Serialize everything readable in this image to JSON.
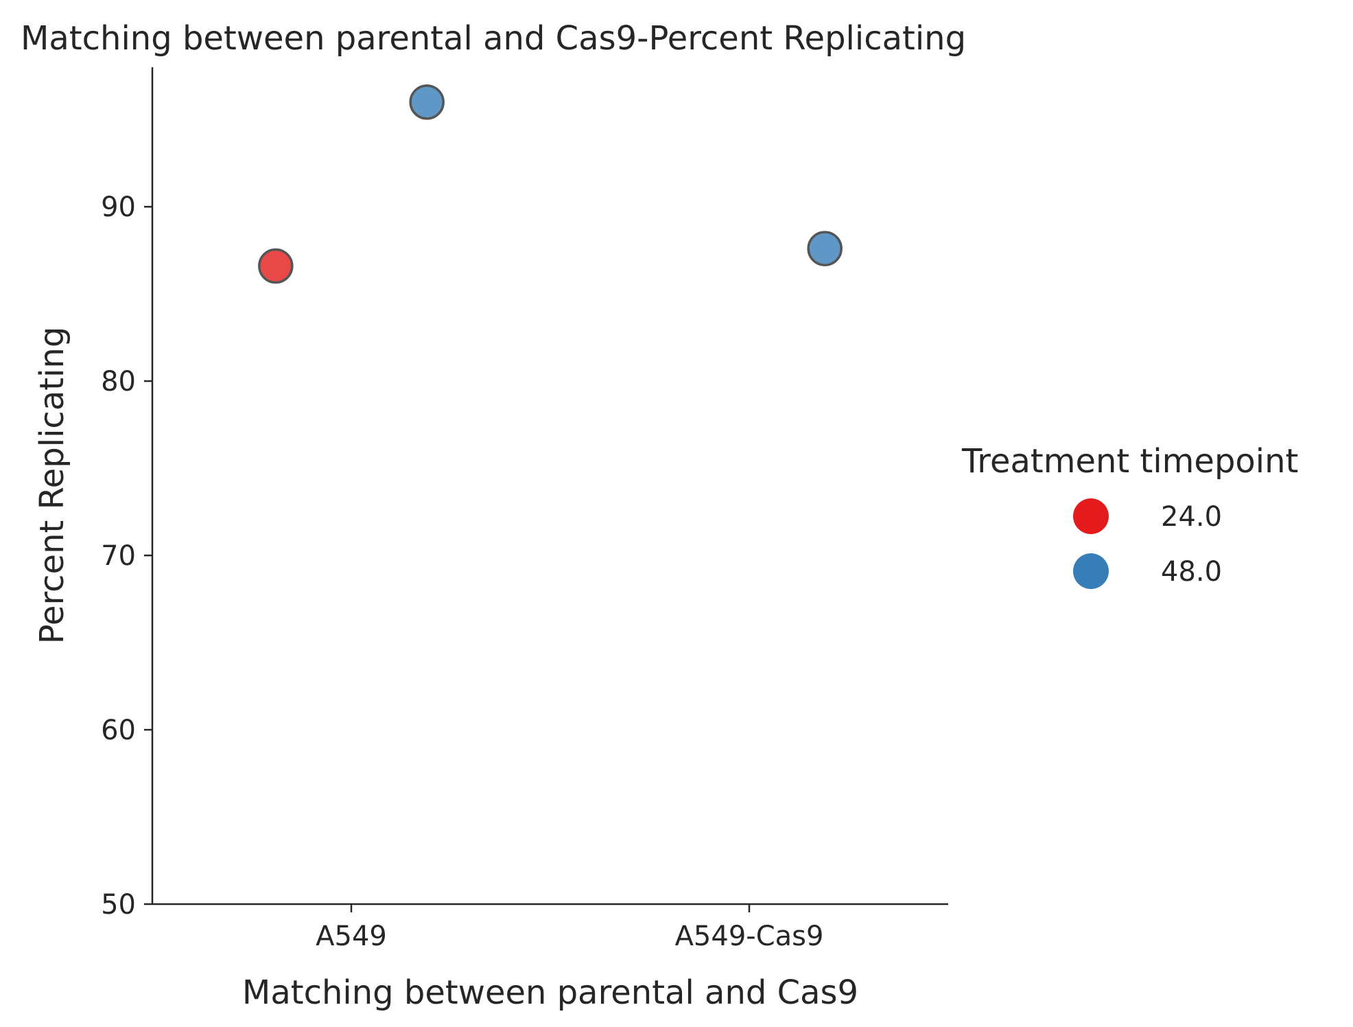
{
  "chart_data": {
    "type": "scatter",
    "title": "Matching between parental and Cas9-Percent Replicating",
    "xlabel": "Matching between parental and Cas9",
    "ylabel": "Percent Replicating",
    "categories": [
      "A549",
      "A549-Cas9"
    ],
    "ylim": [
      50,
      98
    ],
    "yticks": [
      50,
      60,
      70,
      80,
      90
    ],
    "grid": false,
    "legend": {
      "title": "Treatment timepoint",
      "placement": "right",
      "entries": [
        "24.0",
        "48.0"
      ]
    },
    "series": [
      {
        "name": "24.0",
        "color": "#e41a1c",
        "points": [
          {
            "x": "A549",
            "y": 86.6
          }
        ]
      },
      {
        "name": "48.0",
        "color": "#377eb8",
        "points": [
          {
            "x": "A549",
            "y": 96.0
          },
          {
            "x": "A549-Cas9",
            "y": 87.6
          }
        ]
      }
    ]
  }
}
